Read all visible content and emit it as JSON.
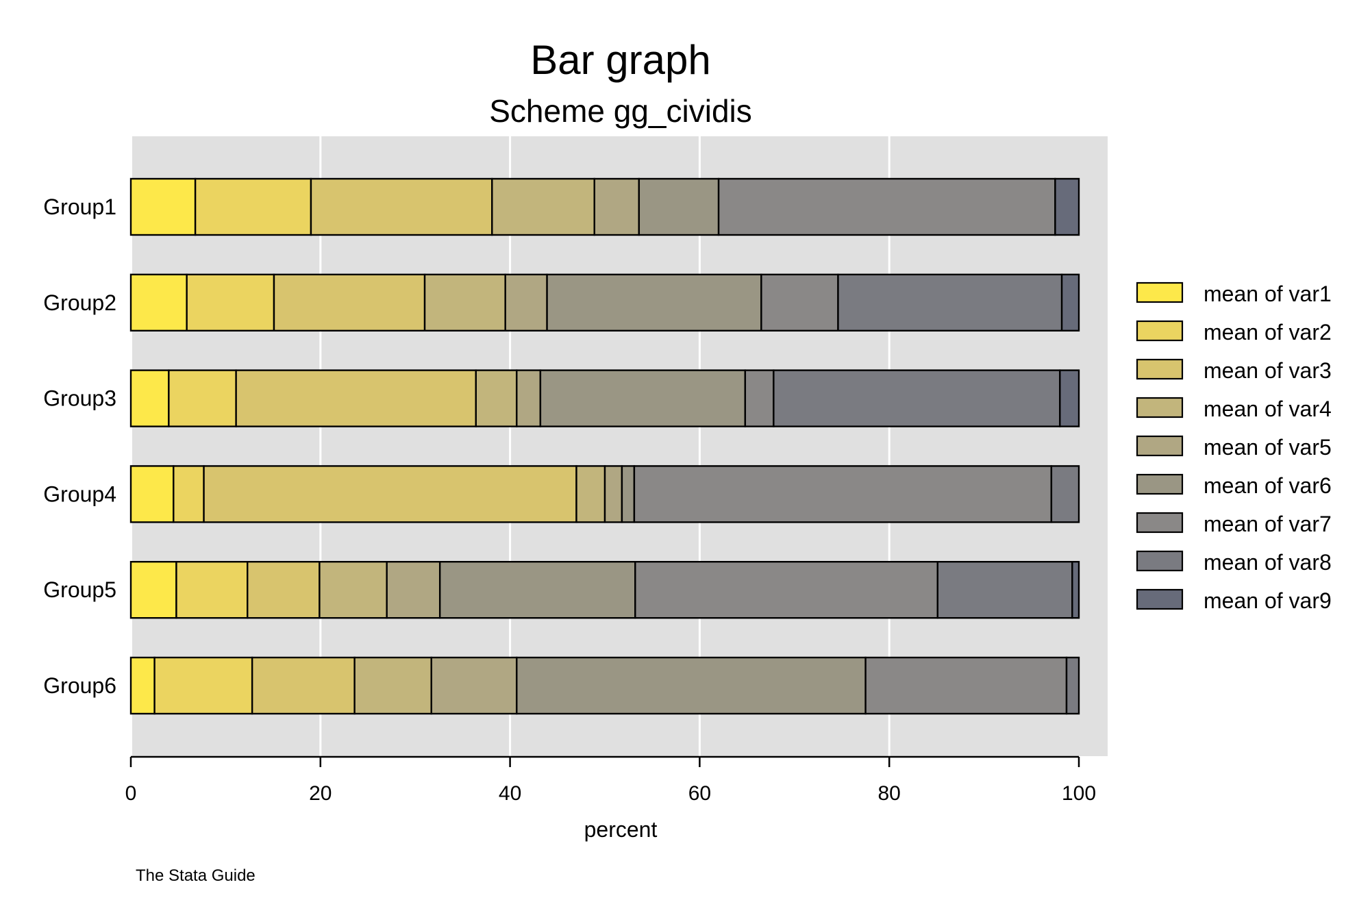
{
  "chart_data": {
    "type": "bar",
    "orientation": "horizontal",
    "stacked": true,
    "title": "Bar graph",
    "subtitle": "Scheme gg_cividis",
    "xlabel": "percent",
    "xlim": [
      0,
      100
    ],
    "xticks": [
      "0",
      "20",
      "40",
      "60",
      "80",
      "100"
    ],
    "xtick_values": [
      0,
      20,
      40,
      60,
      80,
      100
    ],
    "grid": true,
    "legend_position": "right",
    "note": "The Stata Guide",
    "categories": [
      "Group1",
      "Group2",
      "Group3",
      "Group4",
      "Group5",
      "Group6"
    ],
    "series": [
      {
        "name": "mean of var1",
        "color": "#fde84a",
        "values": [
          6.8,
          5.9,
          4.0,
          4.5,
          4.8,
          2.5
        ]
      },
      {
        "name": "mean of var2",
        "color": "#ebd460",
        "values": [
          12.2,
          9.2,
          7.1,
          3.2,
          7.5,
          10.3
        ]
      },
      {
        "name": "mean of var3",
        "color": "#d8c46e",
        "values": [
          19.1,
          15.9,
          25.3,
          39.3,
          7.6,
          10.8
        ]
      },
      {
        "name": "mean of var4",
        "color": "#c2b57c",
        "values": [
          10.8,
          8.5,
          4.3,
          3.0,
          7.1,
          8.1
        ]
      },
      {
        "name": "mean of var5",
        "color": "#b0a783",
        "values": [
          4.7,
          4.4,
          2.5,
          1.8,
          5.6,
          9.0
        ]
      },
      {
        "name": "mean of var6",
        "color": "#9a9684",
        "values": [
          8.4,
          22.6,
          21.6,
          1.3,
          20.6,
          36.8
        ]
      },
      {
        "name": "mean of var7",
        "color": "#8a8887",
        "values": [
          35.5,
          8.1,
          3.0,
          44.0,
          31.9,
          21.2
        ]
      },
      {
        "name": "mean of var8",
        "color": "#7a7b81",
        "values": [
          0.0,
          23.6,
          30.2,
          2.9,
          14.2,
          1.3
        ]
      },
      {
        "name": "mean of var9",
        "color": "#676b7a",
        "values": [
          2.5,
          1.8,
          2.0,
          0.0,
          0.7,
          0.0
        ]
      }
    ]
  }
}
